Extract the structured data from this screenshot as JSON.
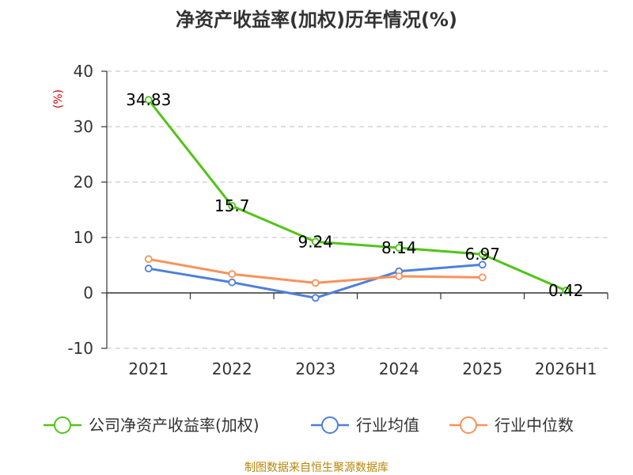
{
  "chart_data": {
    "type": "line",
    "title": "净资产收益率(加权)历年情况(%)",
    "ylabel": "(%)",
    "categories": [
      "2021",
      "2022",
      "2023",
      "2024",
      "2025",
      "2026H1"
    ],
    "yticks": [
      "40",
      "30",
      "20",
      "10",
      "0",
      "-10"
    ],
    "ylim": [
      -10,
      40
    ],
    "grid": true,
    "legend_position": "bottom",
    "series": [
      {
        "name": "公司净资产收益率(加权)",
        "color": "#52c41a",
        "values": [
          34.83,
          15.7,
          9.24,
          8.14,
          6.97,
          0.42
        ],
        "labels": [
          "34.83",
          "15.7",
          "9.24",
          "8.14",
          "6.97",
          "0.42"
        ]
      },
      {
        "name": "行业均值",
        "color": "#4f7fdc",
        "values": [
          4.4,
          1.9,
          -0.9,
          3.9,
          5.1,
          null
        ]
      },
      {
        "name": "行业中位数",
        "color": "#f8925a",
        "values": [
          6.1,
          3.4,
          1.8,
          3.0,
          2.8,
          null
        ]
      }
    ],
    "source": "制图数据来自恒生聚源数据库"
  }
}
